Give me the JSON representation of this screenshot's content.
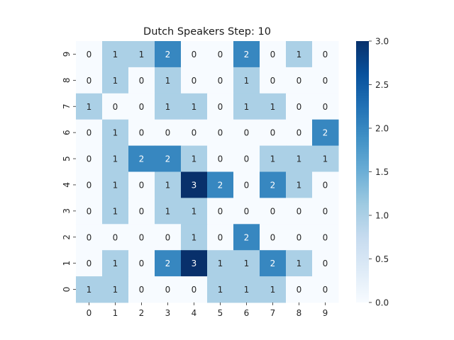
{
  "chart_data": {
    "type": "heatmap",
    "title": "Dutch Speakers Step: 10",
    "xlabel": "",
    "ylabel": "",
    "x_ticks": [
      "0",
      "1",
      "2",
      "3",
      "4",
      "5",
      "6",
      "7",
      "8",
      "9"
    ],
    "y_ticks": [
      "9",
      "8",
      "7",
      "6",
      "5",
      "4",
      "3",
      "2",
      "1",
      "0"
    ],
    "values": [
      [
        0,
        1,
        1,
        2,
        0,
        0,
        2,
        0,
        1,
        0
      ],
      [
        0,
        1,
        0,
        1,
        0,
        0,
        1,
        0,
        0,
        0
      ],
      [
        1,
        0,
        0,
        1,
        1,
        0,
        1,
        1,
        0,
        0
      ],
      [
        0,
        1,
        0,
        0,
        0,
        0,
        0,
        0,
        0,
        2
      ],
      [
        0,
        1,
        2,
        2,
        1,
        0,
        0,
        1,
        1,
        1
      ],
      [
        0,
        1,
        0,
        1,
        3,
        2,
        0,
        2,
        1,
        0
      ],
      [
        0,
        1,
        0,
        1,
        1,
        0,
        0,
        0,
        0,
        0
      ],
      [
        0,
        0,
        0,
        0,
        1,
        0,
        2,
        0,
        0,
        0
      ],
      [
        0,
        1,
        0,
        2,
        3,
        1,
        1,
        2,
        1,
        0
      ],
      [
        1,
        1,
        0,
        0,
        0,
        1,
        1,
        1,
        0,
        0
      ]
    ],
    "vmin": 0,
    "vmax": 3,
    "colormap": "Blues",
    "colorbar_ticks": [
      "0.0",
      "0.5",
      "1.0",
      "1.5",
      "2.0",
      "2.5",
      "3.0"
    ],
    "annotated": true,
    "grid": false
  }
}
